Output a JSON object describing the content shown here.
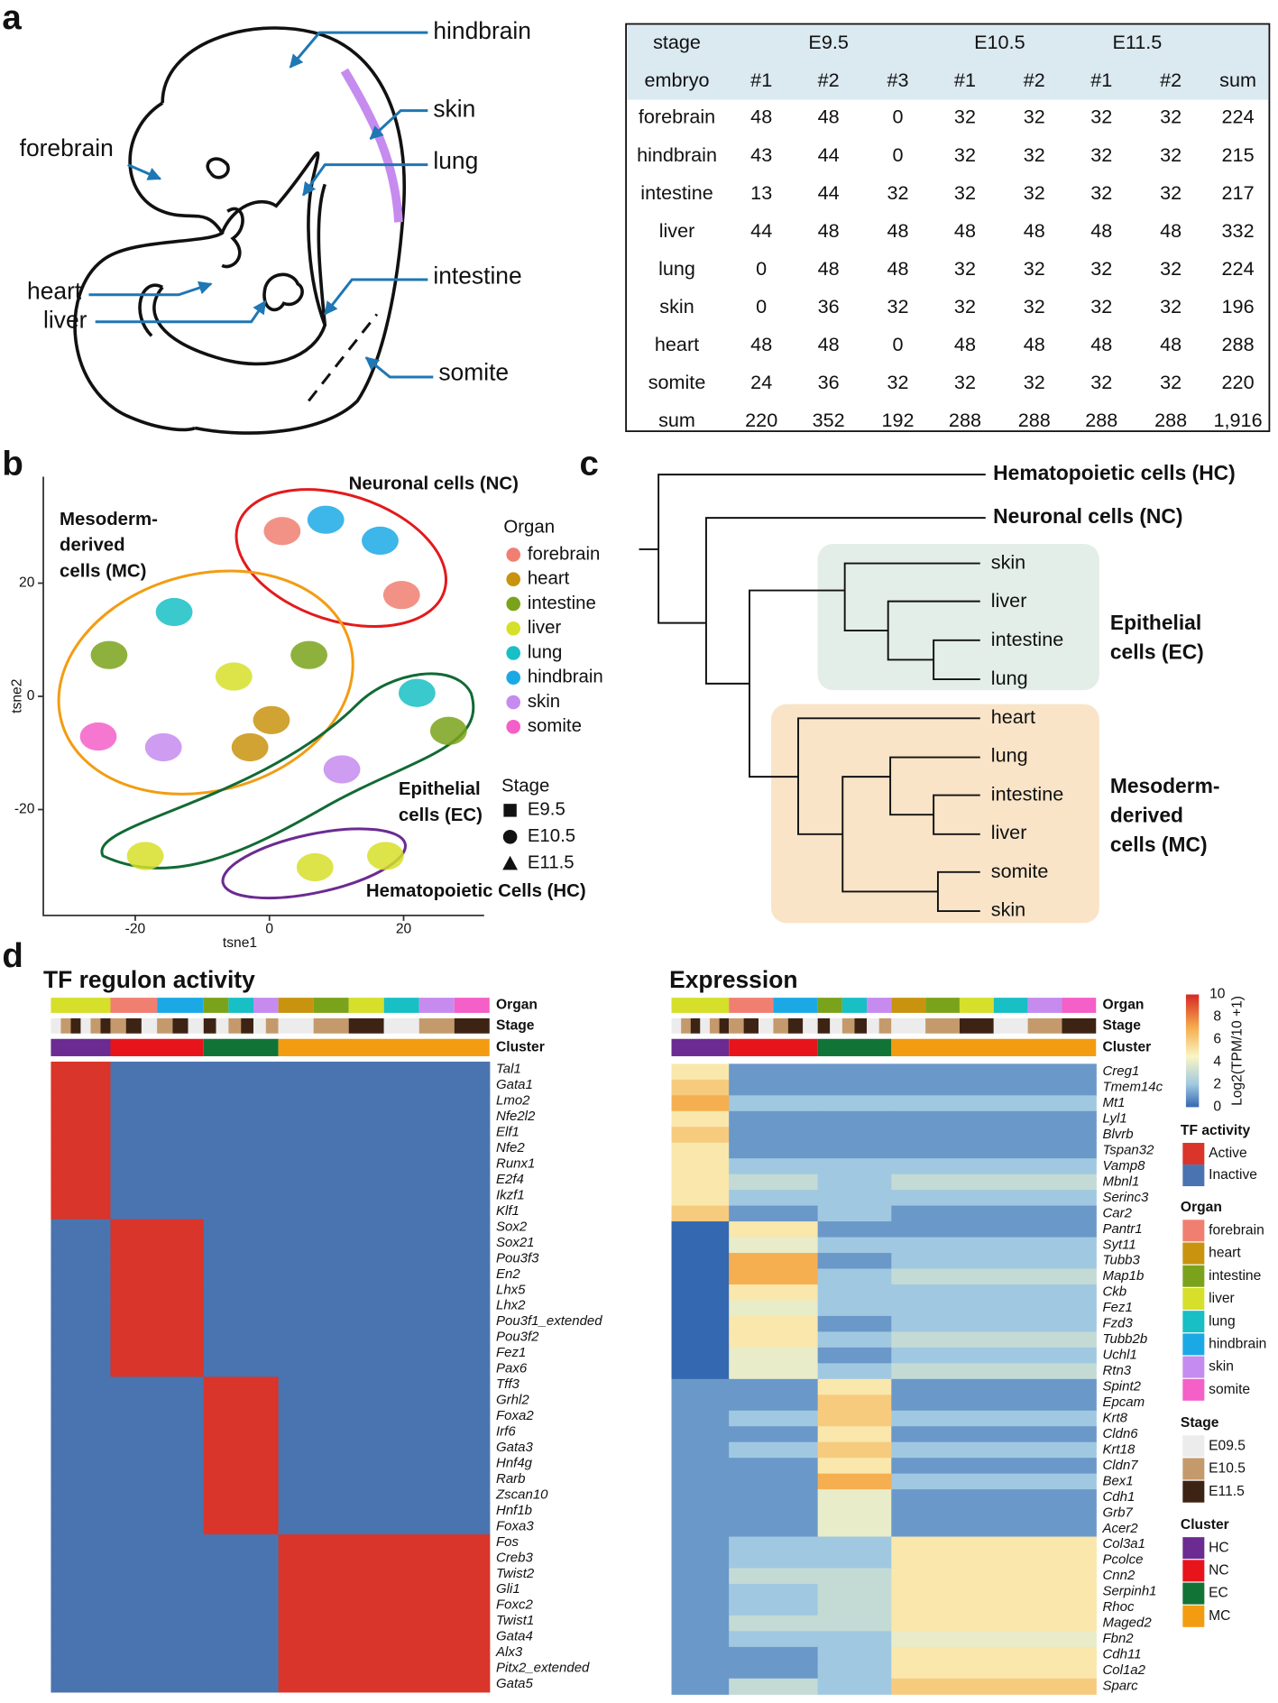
{
  "panel_labels": [
    "a",
    "b",
    "c",
    "d"
  ],
  "embryo": {
    "labels": [
      "hindbrain",
      "skin",
      "forebrain",
      "lung",
      "heart",
      "liver",
      "intestine",
      "somite"
    ]
  },
  "table": {
    "header": [
      [
        "stage",
        "E9.5",
        "E10.5",
        "E11.5"
      ],
      [
        "embryo",
        "#1",
        "#2",
        "#3",
        "#1",
        "#2",
        "#1",
        "#2",
        "sum"
      ]
    ],
    "rows": [
      [
        "forebrain",
        48,
        48,
        0,
        32,
        32,
        32,
        32,
        224
      ],
      [
        "hindbrain",
        43,
        44,
        0,
        32,
        32,
        32,
        32,
        215
      ],
      [
        "intestine",
        13,
        44,
        32,
        32,
        32,
        32,
        32,
        217
      ],
      [
        "liver",
        44,
        48,
        48,
        48,
        48,
        48,
        48,
        332
      ],
      [
        "lung",
        0,
        48,
        48,
        32,
        32,
        32,
        32,
        224
      ],
      [
        "skin",
        0,
        36,
        32,
        32,
        32,
        32,
        32,
        196
      ],
      [
        "heart",
        48,
        48,
        0,
        48,
        48,
        48,
        48,
        288
      ],
      [
        "somite",
        24,
        36,
        32,
        32,
        32,
        32,
        32,
        220
      ],
      [
        "sum",
        220,
        352,
        192,
        288,
        288,
        288,
        288,
        "1,916"
      ]
    ]
  },
  "chart_data": {
    "type": "scatter",
    "xlabel": "tsne1",
    "ylabel": "tsne2",
    "xlim": [
      -33.7,
      32
    ],
    "ylim": [
      -38.7,
      38.8
    ],
    "xticks": [
      -20,
      0,
      20
    ],
    "yticks": [
      -20,
      0,
      20
    ],
    "legend_title": "Organ",
    "series": [
      {
        "name": "forebrain",
        "color": "#f07f72",
        "x": [
          1.9,
          19.7
        ],
        "y": [
          29.2,
          17.9
        ]
      },
      {
        "name": "heart",
        "color": "#c8930f",
        "x": [
          0.3,
          -2.9
        ],
        "y": [
          -4.2,
          -9
        ]
      },
      {
        "name": "intestine",
        "color": "#7aa31b",
        "x": [
          -23.9,
          5.9,
          26.7
        ],
        "y": [
          7.3,
          7.3,
          -6.1
        ]
      },
      {
        "name": "liver",
        "color": "#d6df2a",
        "x": [
          -5.3,
          -18.5,
          6.8,
          17.3
        ],
        "y": [
          3.5,
          -28.2,
          -30.2,
          -28.2
        ]
      },
      {
        "name": "lung",
        "color": "#18bfc4",
        "x": [
          -14.2,
          22
        ],
        "y": [
          14.9,
          0.6
        ]
      },
      {
        "name": "hindbrain",
        "color": "#1ba9e6",
        "x": [
          8.4,
          16.5
        ],
        "y": [
          31.2,
          27.5
        ]
      },
      {
        "name": "skin",
        "color": "#c68bef",
        "x": [
          -15.8,
          10.8
        ],
        "y": [
          -9,
          -12.9
        ]
      },
      {
        "name": "somite",
        "color": "#f45fc8",
        "x": [
          -25.5
        ],
        "y": [
          -7.1
        ]
      }
    ],
    "stage_title": "Stage",
    "stages": [
      "E9.5",
      "E10.5",
      "E11.5"
    ],
    "groups": {
      "nc": "Neuronal cells (NC)",
      "mc": [
        "Mesoderm-",
        "derived",
        "cells (MC)"
      ],
      "ec": [
        "Epithelial",
        "cells (EC)"
      ],
      "hc": "Hematopoietic Cells (HC)"
    }
  },
  "dendrogram": {
    "top_leaves": [
      "Hematopoietic cells (HC)",
      "Neuronal cells (NC)"
    ],
    "ec_leaves": [
      "skin",
      "liver",
      "intestine",
      "lung"
    ],
    "mc_leaves": [
      "heart",
      "lung",
      "intestine",
      "liver",
      "somite",
      "skin"
    ],
    "ec_label": [
      "Epithelial",
      "cells (EC)"
    ],
    "mc_label": [
      "Mesoderm-",
      "derived",
      "cells (MC)"
    ]
  },
  "heatmaps": {
    "tf": {
      "title": "TF regulon activity",
      "tracks": [
        "Organ",
        "Stage",
        "Cluster"
      ],
      "genes": [
        "Tal1",
        "Gata1",
        "Lmo2",
        "Nfe2l2",
        "Elf1",
        "Nfe2",
        "Runx1",
        "E2f4",
        "Ikzf1",
        "Klf1",
        "Sox2",
        "Sox21",
        "Pou3f3",
        "En2",
        "Lhx5",
        "Lhx2",
        "Pou3f1_extended",
        "Pou3f2",
        "Fez1",
        "Pax6",
        "Tff3",
        "Grhl2",
        "Foxa2",
        "Irf6",
        "Gata3",
        "Hnf4g",
        "Rarb",
        "Zscan10",
        "Hnf1b",
        "Foxa3",
        "Fos",
        "Creb3",
        "Twist2",
        "Gli1",
        "Foxc2",
        "Twist1",
        "Gata4",
        "Alx3",
        "Pitx2_extended",
        "Gata5"
      ],
      "activity": [
        [
          1,
          0,
          0,
          0
        ],
        [
          1,
          0,
          0,
          0
        ],
        [
          1,
          0,
          0,
          0
        ],
        [
          1,
          0,
          0,
          0
        ],
        [
          1,
          0,
          0,
          0
        ],
        [
          1,
          0,
          0,
          0
        ],
        [
          1,
          0,
          0,
          0
        ],
        [
          1,
          0,
          0,
          0
        ],
        [
          1,
          0,
          0,
          0
        ],
        [
          1,
          0,
          0,
          0
        ],
        [
          0,
          1,
          0,
          0
        ],
        [
          0,
          1,
          0,
          0
        ],
        [
          0,
          1,
          0,
          0
        ],
        [
          0,
          1,
          0,
          0
        ],
        [
          0,
          1,
          0,
          0
        ],
        [
          0,
          1,
          0,
          0
        ],
        [
          0,
          1,
          0,
          0
        ],
        [
          0,
          1,
          0,
          0
        ],
        [
          0,
          1,
          0,
          0
        ],
        [
          0,
          1,
          0,
          0
        ],
        [
          0,
          0,
          1,
          0
        ],
        [
          0,
          0,
          1,
          0
        ],
        [
          0,
          0,
          1,
          0
        ],
        [
          0,
          0,
          1,
          0
        ],
        [
          0,
          0,
          1,
          0
        ],
        [
          0,
          0,
          1,
          0
        ],
        [
          0,
          0,
          1,
          0
        ],
        [
          0,
          0,
          1,
          0
        ],
        [
          0,
          0,
          1,
          0
        ],
        [
          0,
          0,
          1,
          0
        ],
        [
          0,
          0,
          0,
          1
        ],
        [
          0,
          0,
          0,
          1
        ],
        [
          0,
          0,
          0,
          1
        ],
        [
          0,
          0,
          0,
          1
        ],
        [
          0,
          0,
          0,
          1
        ],
        [
          0,
          0,
          0,
          1
        ],
        [
          0,
          0,
          0,
          1
        ],
        [
          0,
          0,
          0,
          1
        ],
        [
          0,
          0,
          0,
          1
        ],
        [
          0,
          0,
          0,
          1
        ]
      ]
    },
    "expression": {
      "title": "Expression",
      "tracks": [
        "Organ",
        "Stage",
        "Cluster"
      ],
      "genes": [
        "Creg1",
        "Tmem14c",
        "Mt1",
        "Lyl1",
        "Blvrb",
        "Tspan32",
        "Vamp8",
        "Mbnl1",
        "Serinc3",
        "Car2",
        "Pantr1",
        "Syt11",
        "Tubb3",
        "Map1b",
        "Ckb",
        "Fez1",
        "Fzd3",
        "Tubb2b",
        "Uchl1",
        "Rtn3",
        "Spint2",
        "Epcam",
        "Krt8",
        "Cldn6",
        "Krt18",
        "Cldn7",
        "Bex1",
        "Cdh1",
        "Grb7",
        "Acer2",
        "Col3a1",
        "Pcolce",
        "Cnn2",
        "Serpinh1",
        "Rhoc",
        "Maged2",
        "Fbn2",
        "Cdh11",
        "Col1a2",
        "Sparc"
      ],
      "levels": [
        [
          5,
          1,
          1,
          1
        ],
        [
          6,
          1,
          1,
          1
        ],
        [
          7,
          2,
          2,
          2
        ],
        [
          5,
          1,
          1,
          1
        ],
        [
          6,
          1,
          1,
          1
        ],
        [
          5,
          1,
          1,
          1
        ],
        [
          5,
          2,
          2,
          2
        ],
        [
          5,
          3,
          2,
          3
        ],
        [
          5,
          2,
          2,
          2
        ],
        [
          6,
          1,
          2,
          1
        ],
        [
          0,
          5,
          1,
          1
        ],
        [
          0,
          4,
          2,
          2
        ],
        [
          0,
          7,
          1,
          2
        ],
        [
          0,
          7,
          2,
          3
        ],
        [
          0,
          5,
          2,
          2
        ],
        [
          0,
          4,
          2,
          2
        ],
        [
          0,
          5,
          1,
          2
        ],
        [
          0,
          5,
          2,
          3
        ],
        [
          0,
          4,
          1,
          2
        ],
        [
          0,
          4,
          2,
          3
        ],
        [
          1,
          1,
          5,
          1
        ],
        [
          1,
          1,
          6,
          1
        ],
        [
          1,
          2,
          6,
          2
        ],
        [
          1,
          1,
          5,
          1
        ],
        [
          1,
          2,
          6,
          2
        ],
        [
          1,
          1,
          5,
          1
        ],
        [
          1,
          1,
          7,
          2
        ],
        [
          1,
          1,
          4,
          1
        ],
        [
          1,
          1,
          4,
          1
        ],
        [
          1,
          1,
          4,
          1
        ],
        [
          1,
          2,
          2,
          5
        ],
        [
          1,
          2,
          2,
          5
        ],
        [
          1,
          3,
          3,
          5
        ],
        [
          1,
          2,
          3,
          5
        ],
        [
          1,
          2,
          3,
          5
        ],
        [
          1,
          3,
          3,
          5
        ],
        [
          1,
          2,
          2,
          4
        ],
        [
          1,
          1,
          2,
          5
        ],
        [
          1,
          1,
          2,
          5
        ],
        [
          1,
          3,
          2,
          6
        ]
      ]
    },
    "colorbar": {
      "label": "Log2(TPM/10 +1)",
      "lim": [
        0,
        10
      ],
      "ticks": [
        0,
        2,
        4,
        6,
        8,
        10
      ]
    },
    "legend": {
      "tf_title": "TF activity",
      "tf": [
        {
          "name": "Active",
          "color": "#d9352a"
        },
        {
          "name": "Inactive",
          "color": "#4a74b0"
        }
      ],
      "organ_title": "Organ",
      "organs": [
        {
          "name": "forebrain",
          "color": "#f07f72"
        },
        {
          "name": "heart",
          "color": "#c8930f"
        },
        {
          "name": "intestine",
          "color": "#7aa31b"
        },
        {
          "name": "liver",
          "color": "#d6df2a"
        },
        {
          "name": "lung",
          "color": "#18bfc4"
        },
        {
          "name": "hindbrain",
          "color": "#1ba9e6"
        },
        {
          "name": "skin",
          "color": "#c68bef"
        },
        {
          "name": "somite",
          "color": "#f45fc8"
        }
      ],
      "stage_title": "Stage",
      "stages": [
        {
          "name": "E09.5",
          "color": "#ececec"
        },
        {
          "name": "E10.5",
          "color": "#c49a6c"
        },
        {
          "name": "E11.5",
          "color": "#3d2314"
        }
      ],
      "cluster_title": "Cluster",
      "clusters": [
        {
          "name": "HC",
          "color": "#6b2b91"
        },
        {
          "name": "NC",
          "color": "#e8141c"
        },
        {
          "name": "EC",
          "color": "#127337"
        },
        {
          "name": "MC",
          "color": "#f39c12"
        }
      ]
    }
  }
}
